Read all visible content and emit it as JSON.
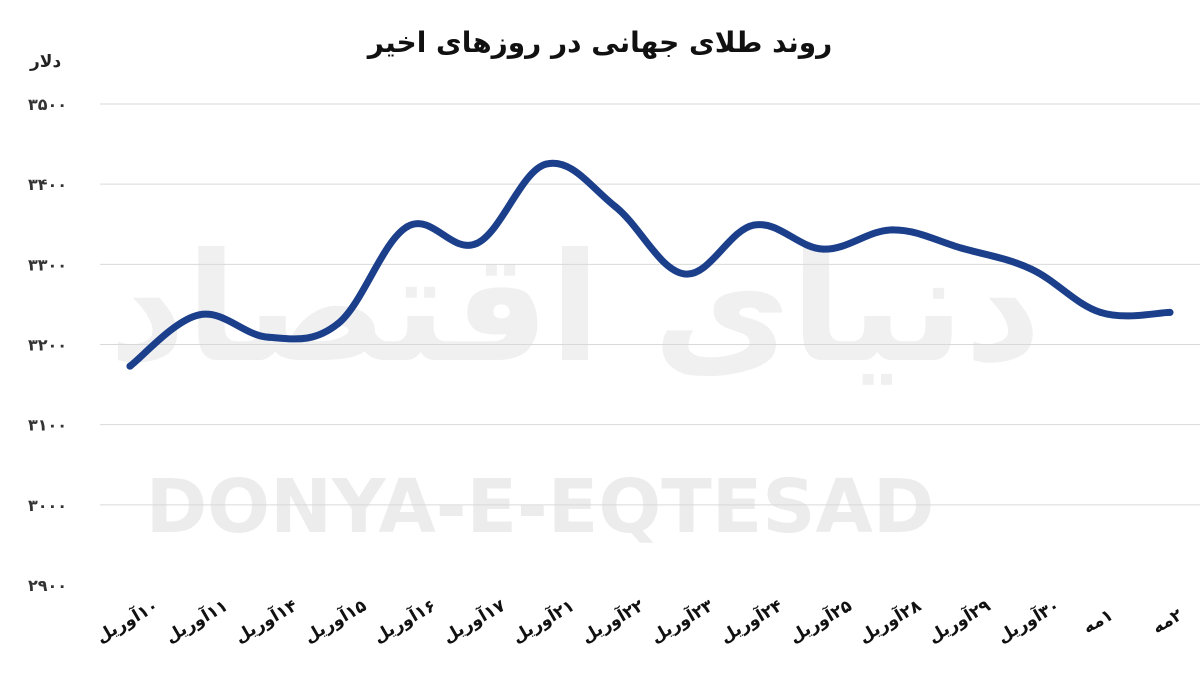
{
  "chart_data": {
    "type": "line",
    "title": "روند طلای جهانی در روزهای اخیر",
    "ylabel": "دلار",
    "xlabel": "",
    "categories": [
      "۱۰آوریل",
      "۱۱آوریل",
      "۱۴آوریل",
      "۱۵آوریل",
      "۱۶آوریل",
      "۱۷آوریل",
      "۲۱آوریل",
      "۲۲آوریل",
      "۲۳آوریل",
      "۲۴آوریل",
      "۲۵آوریل",
      "۲۸آوریل",
      "۲۹آوریل",
      "۳۰آوریل",
      "۱مه",
      "۲مه"
    ],
    "series": [
      {
        "values": [
          3173,
          3237,
          3209,
          3226,
          3347,
          3326,
          3425,
          3372,
          3288,
          3349,
          3319,
          3343,
          3320,
          3294,
          3240,
          3240
        ]
      }
    ],
    "ylim": [
      2900,
      3500
    ],
    "yticks": [
      2900,
      3000,
      3100,
      3200,
      3300,
      3400,
      3500
    ],
    "ytick_labels": [
      "۲۹۰۰",
      "۳۰۰۰",
      "۳۱۰۰",
      "۳۲۰۰",
      "۳۳۰۰",
      "۳۴۰۰",
      "۳۵۰۰"
    ],
    "grid": true,
    "line_color": "#1b3f8b",
    "watermark_text": "DONYA-E-EQTESAD",
    "watermark_logo": "دنیای اقتصاد"
  }
}
